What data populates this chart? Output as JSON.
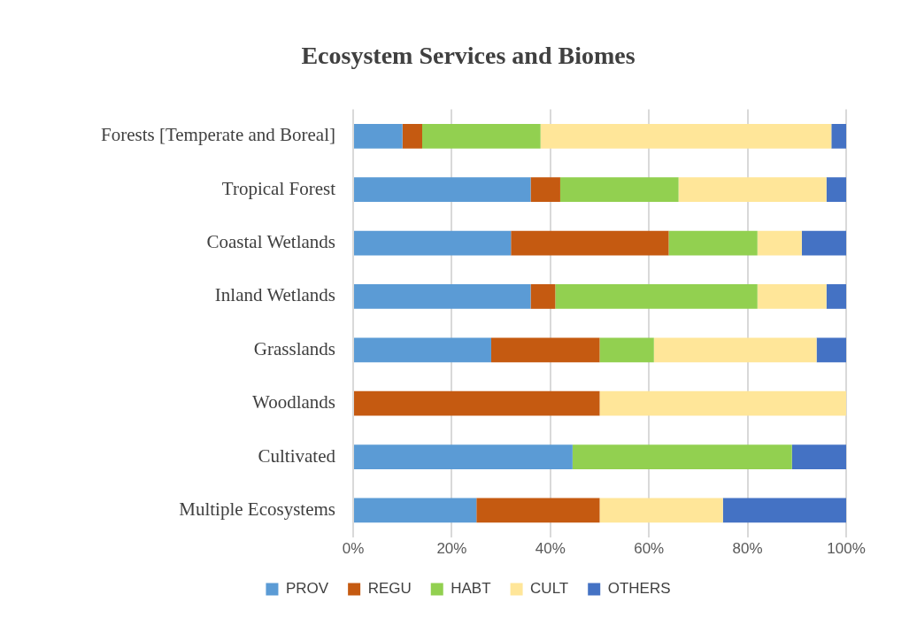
{
  "chart_data": {
    "type": "bar",
    "orientation": "horizontal",
    "stacked": true,
    "title": "Ecosystem Services and Biomes",
    "categories": [
      "Forests [Temperate and Boreal]",
      "Tropical Forest",
      "Coastal Wetlands",
      "Inland Wetlands",
      "Grasslands",
      "Woodlands",
      "Cultivated",
      "Multiple Ecosystems"
    ],
    "series": [
      {
        "name": "PROV",
        "color": "#5b9bd5",
        "values": [
          10,
          36,
          32,
          36,
          28,
          0,
          44.5,
          25
        ]
      },
      {
        "name": "REGU",
        "color": "#c55a11",
        "values": [
          4,
          6,
          32,
          5,
          22,
          50,
          0,
          25
        ]
      },
      {
        "name": "HABT",
        "color": "#92d050",
        "values": [
          24,
          24,
          18,
          41,
          11,
          0,
          44.5,
          0
        ]
      },
      {
        "name": "CULT",
        "color": "#ffe699",
        "values": [
          59,
          30,
          9,
          14,
          33,
          50,
          0,
          25
        ]
      },
      {
        "name": "OTHERS",
        "color": "#4472c4",
        "values": [
          3,
          4,
          9,
          4,
          6,
          0,
          11,
          25
        ]
      }
    ],
    "xlim": [
      0,
      100
    ],
    "xticks": [
      {
        "value": 0,
        "label": "0%"
      },
      {
        "value": 20,
        "label": "20%"
      },
      {
        "value": 40,
        "label": "40%"
      },
      {
        "value": 60,
        "label": "60%"
      },
      {
        "value": 80,
        "label": "80%"
      },
      {
        "value": 100,
        "label": "100%"
      }
    ],
    "grid": "x",
    "legend": "bottom"
  }
}
